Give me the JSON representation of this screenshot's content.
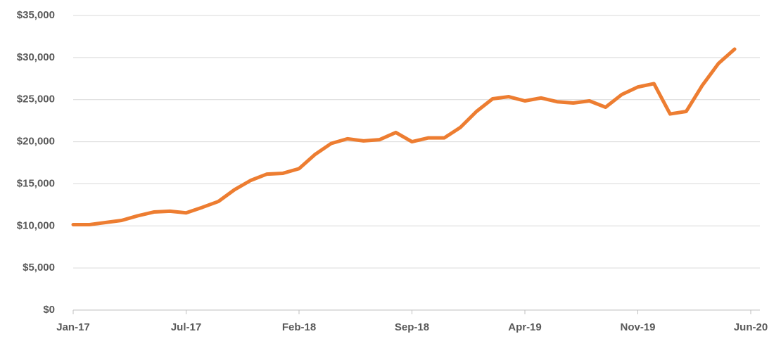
{
  "chart_data": {
    "type": "line",
    "categories": [
      "Jan-17",
      null,
      null,
      null,
      null,
      null,
      null,
      "Jul-17",
      null,
      null,
      null,
      null,
      null,
      null,
      "Feb-18",
      null,
      null,
      null,
      null,
      null,
      null,
      "Sep-18",
      null,
      null,
      null,
      null,
      null,
      null,
      "Apr-19",
      null,
      null,
      null,
      null,
      null,
      null,
      "Nov-19",
      null,
      null,
      null,
      null,
      null,
      null,
      "Jun-20"
    ],
    "series": [
      {
        "color": "#ED7D31",
        "values": [
          10150,
          10150,
          10400,
          10650,
          11200,
          11650,
          11750,
          11550,
          12200,
          12900,
          14300,
          15400,
          16150,
          16250,
          16800,
          18500,
          19800,
          20350,
          20100,
          20250,
          21100,
          20000,
          20450,
          20450,
          21700,
          23600,
          25100,
          25350,
          24850,
          25200,
          24750,
          24600,
          24850,
          24100,
          25600,
          26500,
          26900,
          23300,
          23600,
          26700,
          29300,
          31000,
          null
        ]
      }
    ],
    "ylim": [
      0,
      35000
    ],
    "yticks": [
      {
        "value": 0,
        "label": "$0"
      },
      {
        "value": 5000,
        "label": "$5,000"
      },
      {
        "value": 10000,
        "label": "$10,000"
      },
      {
        "value": 15000,
        "label": "$15,000"
      },
      {
        "value": 20000,
        "label": "$20,000"
      },
      {
        "value": 25000,
        "label": "$25,000"
      },
      {
        "value": 30000,
        "label": "$30,000"
      },
      {
        "value": 35000,
        "label": "$35,000"
      }
    ],
    "grid": true
  }
}
